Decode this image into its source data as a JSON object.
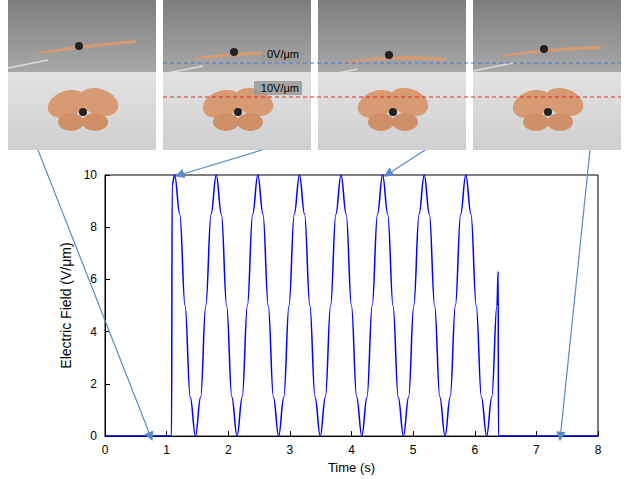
{
  "chart_data": {
    "type": "line",
    "x_label": "Time (s)",
    "y_label": "Electric Field (V/μm)",
    "x": [
      0,
      1.08,
      1.09,
      1.13,
      1.214,
      1.299,
      1.383,
      1.468,
      1.552,
      1.636,
      1.721,
      1.805,
      1.889,
      1.974,
      2.058,
      2.143,
      2.227,
      2.311,
      2.396,
      2.48,
      2.564,
      2.649,
      2.733,
      2.818,
      2.902,
      2.986,
      3.071,
      3.155,
      3.239,
      3.324,
      3.408,
      3.493,
      3.577,
      3.661,
      3.746,
      3.83,
      3.914,
      3.999,
      4.083,
      4.168,
      4.252,
      4.336,
      4.421,
      4.505,
      4.589,
      4.674,
      4.758,
      4.843,
      4.927,
      5.011,
      5.096,
      5.18,
      5.264,
      5.349,
      5.433,
      5.518,
      5.602,
      5.686,
      5.771,
      5.855,
      5.939,
      6.024,
      6.108,
      6.193,
      6.277,
      6.36,
      6.38,
      6.385,
      8
    ],
    "values": [
      0,
      0,
      9.6,
      10,
      8.5,
      5,
      1.5,
      0,
      1.5,
      5,
      8.5,
      10,
      8.5,
      5,
      1.5,
      0,
      1.5,
      5,
      8.5,
      10,
      8.5,
      5,
      1.5,
      0,
      1.5,
      5,
      8.5,
      10,
      8.5,
      5,
      1.5,
      0,
      1.5,
      5,
      8.5,
      10,
      8.5,
      5,
      1.5,
      0,
      1.5,
      5,
      8.5,
      10,
      8.5,
      5,
      1.5,
      0,
      1.5,
      5,
      8.5,
      10,
      8.5,
      5,
      1.5,
      0,
      1.5,
      5,
      8.5,
      10,
      8.5,
      5,
      1.5,
      0,
      1.5,
      5,
      6.3,
      0,
      0
    ],
    "color": "#0000ff",
    "xlim": [
      0,
      8
    ],
    "xticks": [
      0,
      1,
      2,
      3,
      4,
      5,
      6,
      7,
      8
    ],
    "ylim": [
      0,
      10
    ],
    "yticks": [
      0,
      2,
      4,
      6,
      8,
      10
    ],
    "grid": false,
    "annotations": [
      {
        "text": "0V/μm",
        "color": "#4a7bd0"
      },
      {
        "text": "10V/μm",
        "color": "#e0302a"
      }
    ]
  }
}
